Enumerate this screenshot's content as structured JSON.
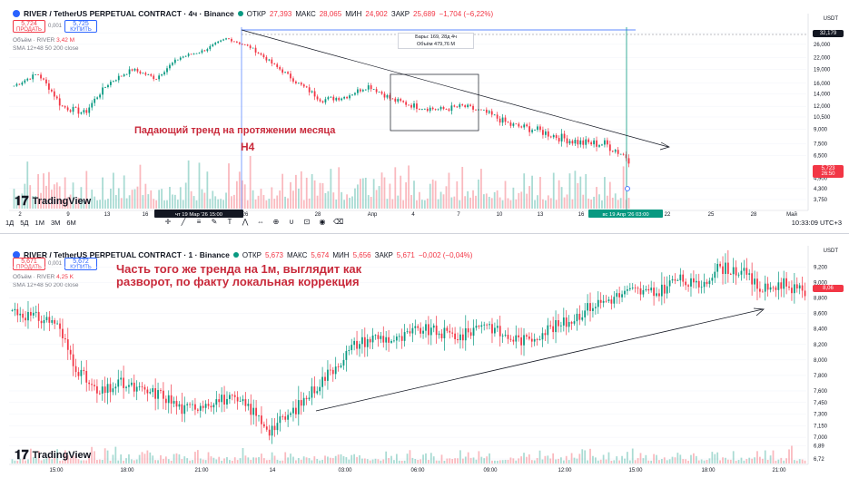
{
  "top": {
    "header": {
      "symbol": "RIVER / TetherUS PERPETUAL CONTRACT · 4ч · Binance",
      "o_label": "ОТКР",
      "o": "27,393",
      "h_label": "МАКС",
      "h": "28,065",
      "l_label": "МИН",
      "l": "24,902",
      "c_label": "ЗАКР",
      "c": "25,689",
      "chg": "−1,704 (−6,22%)"
    },
    "trade": {
      "sell_price": "5,724",
      "sell_label": "ПРОДАТЬ",
      "spread": "0,001",
      "buy_price": "5,725",
      "buy_label": "КУПИТЬ"
    },
    "volume_label": "Объём · RIVER",
    "volume_value": "3,42 M",
    "sma_label": "SMA 12+48 50 200 close",
    "annotation_line1": "Падающий тренд на протяжении месяца",
    "annotation_line2": "H4",
    "logo_text": "TradingView",
    "infobox_line1": "Бары: 169, 28д 4ч",
    "infobox_line2": "Объём 479,76 M",
    "currency": "USDT",
    "price_tag_high": "32,179",
    "price_tag_last": "5,723",
    "price_tag_last_sub": "26:50",
    "y_ticks": [
      "30,000",
      "26,000",
      "22,000",
      "19,000",
      "16,000",
      "14,000",
      "12,000",
      "10,500",
      "9,000",
      "7,500",
      "6,500",
      "4,900",
      "4,300",
      "3,750"
    ],
    "x_ticks": [
      "2",
      "9",
      "16",
      "23",
      "2",
      "9",
      "16",
      "23",
      "30",
      "6",
      "13",
      "20",
      "27",
      "Май"
    ],
    "x_ticks_full": [
      "2",
      "9",
      "13",
      "16",
      "19",
      "23",
      "26",
      "28",
      "Апр",
      "4",
      "7",
      "10",
      "13",
      "16",
      "19",
      "22",
      "25",
      "28",
      "Май"
    ],
    "x_selected_start": "чт 19 Мар '26   15:00",
    "x_selected_end": "вс 19 Апр '26   03:00",
    "timeframes": [
      "1Д",
      "5Д",
      "1М",
      "3М",
      "6М"
    ],
    "clock": "10:33:09 UTC+3"
  },
  "bottom": {
    "header": {
      "symbol": "RIVER / TetherUS PERPETUAL CONTRACT · 1 · Binance",
      "o_label": "ОТКР",
      "o": "5,673",
      "h_label": "МАКС",
      "h": "5,674",
      "l_label": "МИН",
      "l": "5,656",
      "c_label": "ЗАКР",
      "c": "5,671",
      "chg": "−0,002 (−0,04%)"
    },
    "trade": {
      "sell_price": "5,671",
      "sell_label": "ПРОДАТЬ",
      "spread": "0,001",
      "buy_price": "5,672",
      "buy_label": "КУПИТЬ"
    },
    "volume_label": "Объём · RIVER",
    "volume_value": "4,25 K",
    "sma_label": "SMA 12+48 50 200 close",
    "annotation": "Часть того же тренда на 1м, выглядит как разворот, по факту локальная коррекция",
    "logo_text": "TradingView",
    "currency": "USDT",
    "price_tag_last": "8,06",
    "y_ticks": [
      "9,200",
      "9,000",
      "8,800",
      "8,600",
      "8,400",
      "8,200",
      "8,000",
      "7,800",
      "7,600",
      "7,450",
      "7,300",
      "7,150",
      "7,000",
      "6,89",
      "6,72"
    ],
    "x_ticks": [
      "15:00",
      "18:00",
      "21:00",
      "14",
      "03:00",
      "06:00",
      "09:00",
      "12:00",
      "15:00",
      "18:00",
      "21:00"
    ]
  },
  "colors": {
    "up": "#089981",
    "down": "#f23645",
    "annotation": "#c92a3b",
    "accent": "#2962ff"
  },
  "chart_data": [
    {
      "type": "candlestick",
      "title": "RIVER / TetherUS PERPETUAL CONTRACT · 4ч · Binance",
      "x": [
        "2",
        "9",
        "16",
        "23",
        "Апр",
        "6",
        "13",
        "20"
      ],
      "close": [
        15.5,
        12.0,
        19.0,
        28.0,
        14.0,
        12.0,
        9.0,
        6.0
      ],
      "ylim": [
        3.75,
        32.18
      ],
      "y_scale": "log",
      "annotations": [
        "Падающий тренд на протяжении месяца",
        "H4"
      ],
      "trendline": "descending"
    },
    {
      "type": "candlestick",
      "title": "RIVER / TetherUS PERPETUAL CONTRACT · 1 · Binance",
      "x": [
        "15:00",
        "18:00",
        "21:00",
        "14",
        "03:00",
        "06:00",
        "09:00",
        "12:00",
        "15:00",
        "18:00",
        "21:00"
      ],
      "close": [
        8.55,
        7.6,
        7.45,
        7.15,
        8.3,
        8.35,
        8.3,
        8.45,
        8.85,
        9.1,
        8.9
      ],
      "ylim": [
        6.72,
        9.3
      ],
      "annotations": [
        "Часть того же тренда на 1м, выглядит как разворот, по факту локальная коррекция"
      ],
      "trendline": "ascending"
    }
  ]
}
